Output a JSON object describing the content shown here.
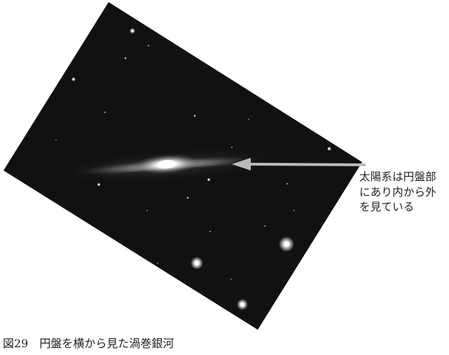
{
  "figure": {
    "annotation_lines": [
      "太陽系は円盤部",
      "にあり内から外",
      "を見ている"
    ],
    "caption_label": "図29",
    "caption_text": "円盤を横から見た渦巻銀河",
    "colors": {
      "photo_background": "#111111",
      "arrow": "#bbbbbb",
      "text": "#222222"
    }
  }
}
